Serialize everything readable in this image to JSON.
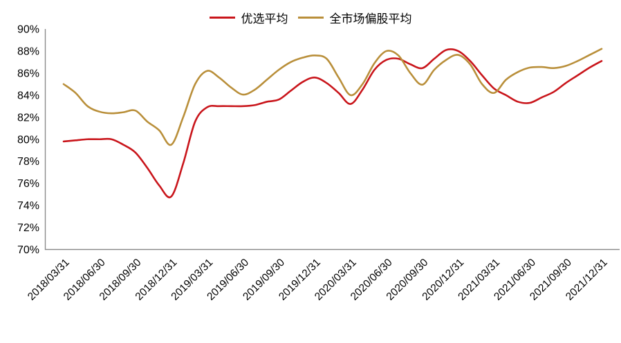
{
  "legend": {
    "items": [
      {
        "label": "优选平均",
        "color": "#C9151B"
      },
      {
        "label": "全市场偏股平均",
        "color": "#B98F3A"
      }
    ]
  },
  "chart_data": {
    "type": "line",
    "title": "",
    "xlabel": "",
    "ylabel": "",
    "ylim": [
      70,
      90
    ],
    "ytick_step": 2,
    "y_tick_labels": [
      "90%",
      "88%",
      "86%",
      "84%",
      "82%",
      "80%",
      "78%",
      "76%",
      "74%",
      "72%",
      "70%"
    ],
    "x_tick_labels": [
      "2018/03/31",
      "2018/06/30",
      "2018/09/30",
      "2018/12/31",
      "2019/03/31",
      "2019/06/30",
      "2019/09/30",
      "2019/12/31",
      "2020/03/31",
      "2020/06/30",
      "2020/09/30",
      "2020/12/31",
      "2021/03/31",
      "2021/06/30",
      "2021/09/30",
      "2021/12/31"
    ],
    "sampling": "monthly, 3 points per quarter, from 2018/03 to 2021/12 (46 points)",
    "grid": false,
    "legend_position": "top-center",
    "axis_color": "#8A8A8A",
    "series": [
      {
        "name": "优选平均",
        "color": "#C9151B",
        "values": [
          79.8,
          79.9,
          80.0,
          80.0,
          80.0,
          79.5,
          78.8,
          77.4,
          75.8,
          74.8,
          77.8,
          81.6,
          82.9,
          83.0,
          83.0,
          83.0,
          83.1,
          83.4,
          83.6,
          84.4,
          85.2,
          85.6,
          85.1,
          84.2,
          83.2,
          84.5,
          86.3,
          87.2,
          87.3,
          86.8,
          86.45,
          87.3,
          88.1,
          88.0,
          87.1,
          85.8,
          84.6,
          84.0,
          83.4,
          83.3,
          83.8,
          84.3,
          85.1,
          85.8,
          86.5,
          87.1
        ]
      },
      {
        "name": "全市场偏股平均",
        "color": "#B98F3A",
        "values": [
          85.0,
          84.2,
          83.0,
          82.5,
          82.35,
          82.45,
          82.6,
          81.6,
          80.8,
          79.5,
          82.0,
          85.0,
          86.2,
          85.6,
          84.7,
          84.05,
          84.5,
          85.4,
          86.3,
          87.0,
          87.4,
          87.6,
          87.3,
          85.6,
          84.0,
          85.0,
          86.9,
          88.0,
          87.6,
          86.0,
          84.95,
          86.3,
          87.2,
          87.65,
          86.8,
          85.0,
          84.2,
          85.4,
          86.1,
          86.5,
          86.55,
          86.45,
          86.65,
          87.1,
          87.65,
          88.2
        ]
      }
    ]
  }
}
